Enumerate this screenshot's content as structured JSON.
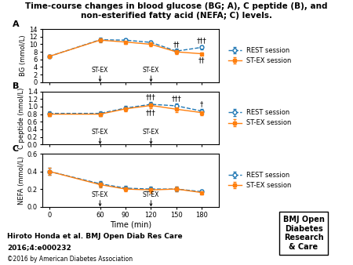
{
  "title": "Time-course changes in blood glucose (BG; A), C peptide (B), and non-esterified fatty acid (NEFA; C) levels.",
  "annotations": [
    "Hiroto Honda et al. BMJ Open Diab Res Care",
    "2016;4:e000232",
    "©2016 by American Diabetes Association",
    "BMJ Open\nDiabetes\nResearch\n& Care"
  ],
  "chart_data": [
    {
      "type": "line",
      "label": "A",
      "ylabel": "BG (mmol/L)",
      "x": [
        0,
        60,
        90,
        120,
        150,
        180
      ],
      "xlim": [
        -8,
        200
      ],
      "xticks": [
        0,
        60,
        90,
        120,
        150,
        180
      ],
      "ylim": [
        0,
        14
      ],
      "yticks": [
        0,
        2,
        4,
        6,
        8,
        10,
        12,
        14
      ],
      "tick_labels": "y",
      "legend": "right",
      "series": [
        {
          "name": "REST session",
          "marker": "open_circle",
          "line_style": "dashed",
          "values": [
            6.8,
            11.2,
            11.1,
            10.5,
            8.2,
            9.2
          ],
          "errors": [
            0.3,
            0.5,
            0.5,
            0.5,
            0.6,
            0.5
          ]
        },
        {
          "name": "ST-EX session",
          "marker": "square",
          "line_style": "solid",
          "values": [
            6.8,
            11.1,
            10.6,
            10.0,
            8.0,
            7.5
          ],
          "errors": [
            0.3,
            0.5,
            0.5,
            0.5,
            0.5,
            0.4
          ]
        }
      ],
      "annotations": [
        {
          "text": "††",
          "x": 150,
          "series": "REST session"
        },
        {
          "text": "†††",
          "x": 180,
          "series": "REST session"
        },
        {
          "text": "††",
          "x": 180,
          "series": "ST-EX session"
        }
      ],
      "events": [
        {
          "x": 60,
          "text": "ST-EX"
        },
        {
          "x": 120,
          "text": "ST-EX"
        }
      ]
    },
    {
      "type": "line",
      "label": "B",
      "ylabel": "C peptide (nmol/L)",
      "x": [
        0,
        60,
        90,
        120,
        150,
        180
      ],
      "xlim": [
        -8,
        200
      ],
      "xticks": [
        0,
        60,
        90,
        120,
        150,
        180
      ],
      "ylim": [
        0.0,
        1.4
      ],
      "yticks": [
        {
          "value": 0,
          "label": "0.0"
        },
        0.2,
        0.4,
        0.6,
        0.8,
        {
          "value": 1,
          "label": "1.0"
        },
        1.2,
        1.4
      ],
      "tick_labels": "y",
      "legend": "right",
      "series": [
        {
          "name": "REST session",
          "marker": "open_circle",
          "line_style": "dashed",
          "values": [
            0.82,
            0.82,
            0.96,
            1.06,
            1.02,
            0.88
          ],
          "errors": [
            0.06,
            0.06,
            0.06,
            0.07,
            0.07,
            0.06
          ]
        },
        {
          "name": "ST-EX session",
          "marker": "square",
          "line_style": "solid",
          "values": [
            0.8,
            0.8,
            0.94,
            1.03,
            0.93,
            0.84
          ],
          "errors": [
            0.06,
            0.06,
            0.06,
            0.07,
            0.07,
            0.06
          ]
        }
      ],
      "annotations": [
        {
          "text": "†††",
          "x": 120,
          "series": "REST session"
        },
        {
          "text": "†††",
          "x": 120,
          "series": "ST-EX session"
        },
        {
          "text": "†††",
          "x": 150,
          "series": "REST session"
        },
        {
          "text": "†",
          "x": 180,
          "series": "REST session"
        }
      ],
      "events": [
        {
          "x": 60,
          "text": "ST-EX"
        },
        {
          "x": 120,
          "text": "ST-EX"
        }
      ]
    },
    {
      "type": "line",
      "label": "C",
      "ylabel": "NEFA (mmol/L)",
      "xlabel": "Time (min)",
      "x": [
        0,
        60,
        90,
        120,
        150,
        180
      ],
      "xlim": [
        -8,
        200
      ],
      "xticks": [
        0,
        60,
        90,
        120,
        150,
        180
      ],
      "ylim": [
        0.0,
        0.6
      ],
      "yticks": [
        {
          "value": 0,
          "label": "0.0"
        },
        0.2,
        0.4,
        0.6
      ],
      "legend": "right",
      "series": [
        {
          "name": "REST session",
          "marker": "open_circle",
          "line_style": "dashed",
          "values": [
            0.4,
            0.26,
            0.21,
            0.2,
            0.2,
            0.17
          ],
          "errors": [
            0.04,
            0.03,
            0.03,
            0.03,
            0.03,
            0.02
          ]
        },
        {
          "name": "ST-EX session",
          "marker": "square",
          "line_style": "solid",
          "values": [
            0.4,
            0.25,
            0.2,
            0.19,
            0.2,
            0.16
          ],
          "errors": [
            0.04,
            0.03,
            0.03,
            0.03,
            0.03,
            0.02
          ]
        }
      ],
      "events": [
        {
          "x": 60,
          "text": "ST-EX"
        },
        {
          "x": 120,
          "text": "ST-EX"
        }
      ]
    }
  ]
}
